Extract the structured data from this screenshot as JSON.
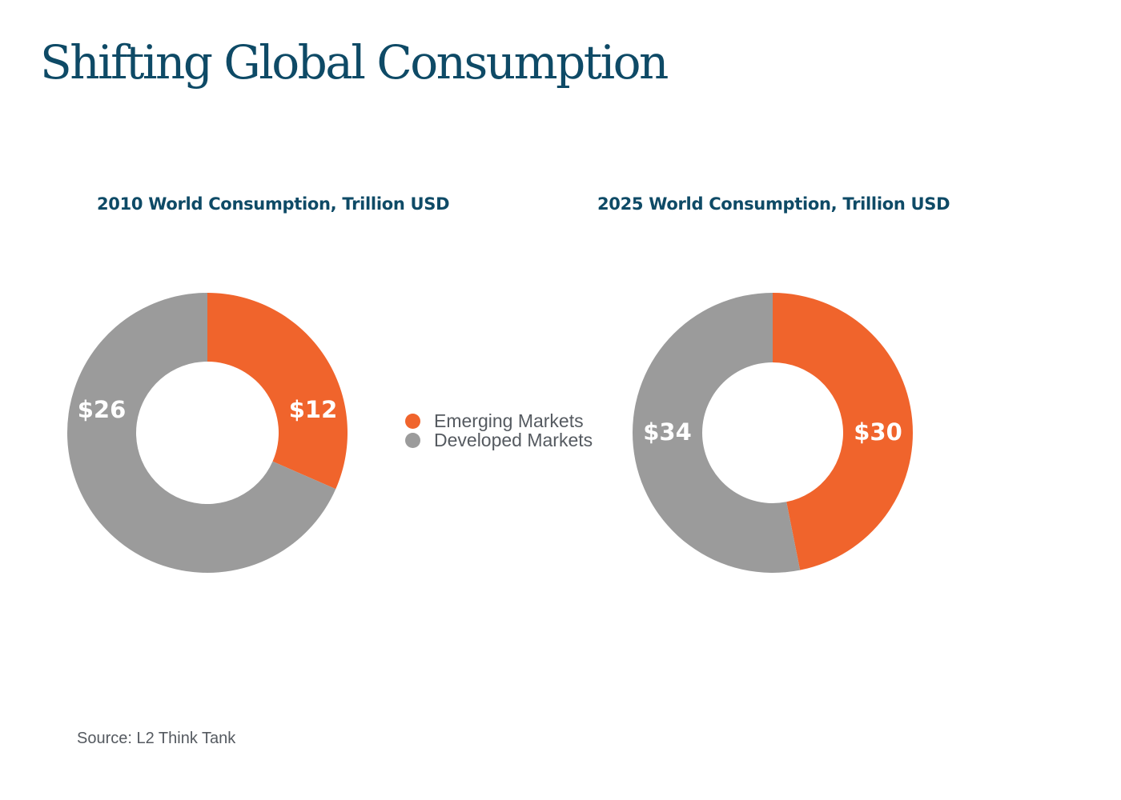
{
  "page": {
    "title": "Shifting Global Consumption",
    "source": "Source: L2 Think Tank"
  },
  "colors": {
    "title": "#0e4a66",
    "emerging": "#f0642c",
    "developed": "#9b9b9b"
  },
  "legend": [
    {
      "label": "Emerging Markets",
      "color": "#f0642c"
    },
    {
      "label": "Developed Markets",
      "color": "#9b9b9b"
    }
  ],
  "chart_data": [
    {
      "type": "pie",
      "style": "donut",
      "title": "2010 World Consumption, Trillion USD",
      "slices": [
        {
          "name": "Emerging Markets",
          "value": 12,
          "label": "$12",
          "color": "#f0642c"
        },
        {
          "name": "Developed Markets",
          "value": 26,
          "label": "$26",
          "color": "#9b9b9b"
        }
      ]
    },
    {
      "type": "pie",
      "style": "donut",
      "title": "2025 World Consumption, Trillion USD",
      "slices": [
        {
          "name": "Emerging Markets",
          "value": 30,
          "label": "$30",
          "color": "#f0642c"
        },
        {
          "name": "Developed Markets",
          "value": 34,
          "label": "$34",
          "color": "#9b9b9b"
        }
      ]
    }
  ]
}
